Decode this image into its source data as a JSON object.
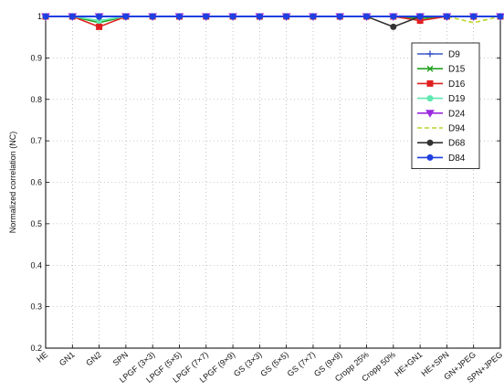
{
  "chart_data": {
    "type": "line",
    "title": "",
    "xlabel": "",
    "ylabel": "Normalized correlation (NC)",
    "ylim": [
      0.2,
      1.0
    ],
    "yticks": [
      "0.2",
      "0.3",
      "0.4",
      "0.5",
      "0.6",
      "0.7",
      "0.8",
      "0.9",
      "1"
    ],
    "grid": true,
    "legend_position": "upper-right",
    "categories": [
      "HE",
      "GN1",
      "GN2",
      "SPN",
      "LPGF (3×3)",
      "LPGF (5×5)",
      "LPGF (7×7)",
      "LPGF (9×9)",
      "GS (3×3)",
      "GS (5×5)",
      "GS (7×7)",
      "GS (9×9)",
      "Cropp 25%",
      "Cropp 50%",
      "HE+GN1",
      "HE+SPN",
      "GN+JPEG",
      "SPN+JPEG"
    ],
    "series": [
      {
        "name": "D9",
        "color": "#3a56c8",
        "marker": "plus",
        "dash": "none",
        "values": [
          1,
          1,
          1,
          1,
          1,
          1,
          1,
          1,
          1,
          1,
          1,
          1,
          1,
          1,
          1,
          1,
          1,
          1
        ]
      },
      {
        "name": "D15",
        "color": "#22a022",
        "marker": "x",
        "dash": "none",
        "values": [
          1,
          1,
          0.985,
          1,
          1,
          1,
          1,
          1,
          1,
          1,
          1,
          1,
          1,
          1,
          0.995,
          1,
          1,
          1
        ]
      },
      {
        "name": "D16",
        "color": "#e02020",
        "marker": "square",
        "dash": "none",
        "values": [
          1,
          1,
          0.975,
          1,
          1,
          1,
          1,
          1,
          1,
          1,
          1,
          1,
          1,
          1,
          0.99,
          1,
          1,
          1
        ]
      },
      {
        "name": "D19",
        "color": "#60e8b0",
        "marker": "circle",
        "dash": "none",
        "values": [
          1,
          1,
          0.99,
          1,
          1,
          1,
          1,
          1,
          1,
          1,
          1,
          1,
          1,
          1,
          1,
          1,
          1,
          1
        ]
      },
      {
        "name": "D24",
        "color": "#9a2ae0",
        "marker": "triangle",
        "dash": "none",
        "values": [
          1,
          1,
          1,
          1,
          1,
          1,
          1,
          1,
          1,
          1,
          1,
          1,
          1,
          1,
          1,
          1,
          1,
          1
        ]
      },
      {
        "name": "D94",
        "color": "#bcd42a",
        "marker": "none",
        "dash": "dashed",
        "values": [
          1,
          1,
          1,
          1,
          1,
          1,
          1,
          1,
          1,
          1,
          1,
          1,
          1,
          1,
          1,
          1,
          0.985,
          1
        ]
      },
      {
        "name": "D68",
        "color": "#333333",
        "marker": "circle",
        "dash": "none",
        "values": [
          1,
          1,
          1,
          1,
          1,
          1,
          1,
          1,
          1,
          1,
          1,
          1,
          1,
          0.975,
          1,
          1,
          1,
          1
        ]
      },
      {
        "name": "D84",
        "color": "#1f3fe0",
        "marker": "circle",
        "dash": "none",
        "values": [
          1,
          1,
          1,
          1,
          1,
          1,
          1,
          1,
          1,
          1,
          1,
          1,
          1,
          1,
          1,
          1,
          1,
          1
        ]
      }
    ]
  }
}
